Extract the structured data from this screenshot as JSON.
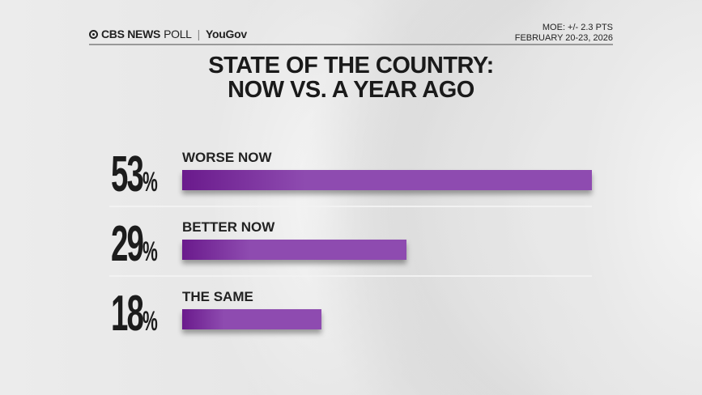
{
  "header": {
    "brand": "CBS NEWS",
    "poll": "POLL",
    "partner": "YouGov",
    "moe": "MOE: +/- 2.3 PTS",
    "dates": "FEBRUARY 20-23, 2026"
  },
  "title_line1": "STATE OF THE COUNTRY:",
  "title_line2": "NOW VS. A YEAR AGO",
  "chart_data": {
    "type": "bar",
    "orientation": "horizontal",
    "title": "STATE OF THE COUNTRY: NOW VS. A YEAR AGO",
    "categories": [
      "WORSE NOW",
      "BETTER NOW",
      "THE SAME"
    ],
    "values": [
      53,
      29,
      18
    ],
    "value_labels": [
      "53",
      "29",
      "18"
    ],
    "unit": "%",
    "bar_color": "#8e4bb0"
  }
}
